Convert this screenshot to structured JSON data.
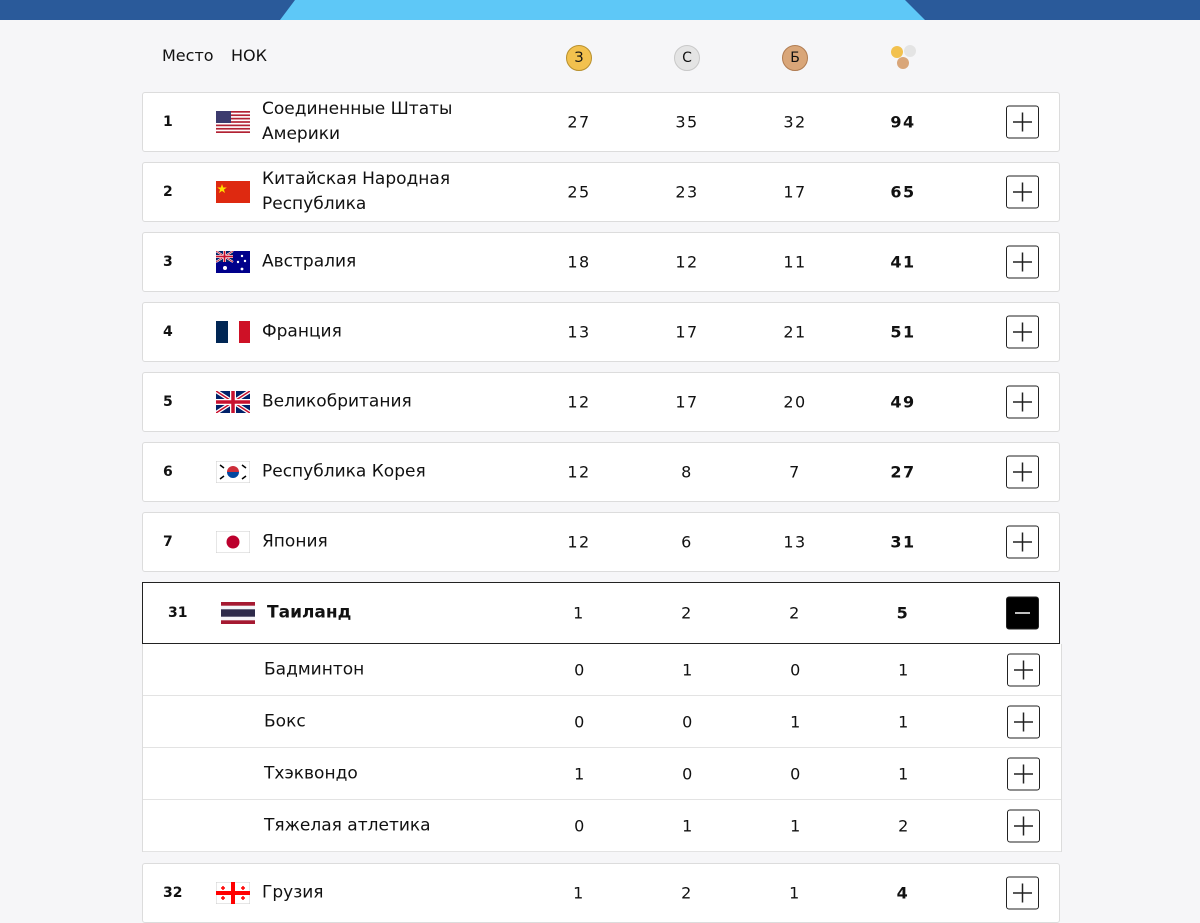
{
  "header": {
    "rank": "Место",
    "noc": "НОК",
    "gold": "З",
    "silver": "С",
    "bronze": "Б"
  },
  "rows": [
    {
      "rank": 1,
      "name": "Соединенные Штаты Америки",
      "gold": 27,
      "silver": 35,
      "bronze": 32,
      "total": 94
    },
    {
      "rank": 2,
      "name": "Китайская Народная Республика",
      "gold": 25,
      "silver": 23,
      "bronze": 17,
      "total": 65
    },
    {
      "rank": 3,
      "name": "Австралия",
      "gold": 18,
      "silver": 12,
      "bronze": 11,
      "total": 41
    },
    {
      "rank": 4,
      "name": "Франция",
      "gold": 13,
      "silver": 17,
      "bronze": 21,
      "total": 51
    },
    {
      "rank": 5,
      "name": "Великобритания",
      "gold": 12,
      "silver": 17,
      "bronze": 20,
      "total": 49
    },
    {
      "rank": 6,
      "name": "Республика Корея",
      "gold": 12,
      "silver": 8,
      "bronze": 7,
      "total": 27
    },
    {
      "rank": 7,
      "name": "Япония",
      "gold": 12,
      "silver": 6,
      "bronze": 13,
      "total": 31
    },
    {
      "rank": 31,
      "name": "Таиланд",
      "gold": 1,
      "silver": 2,
      "bronze": 2,
      "total": 5,
      "sports": [
        {
          "name": "Бадминтон",
          "gold": 0,
          "silver": 1,
          "bronze": 0,
          "total": 1
        },
        {
          "name": "Бокс",
          "gold": 0,
          "silver": 0,
          "bronze": 1,
          "total": 1
        },
        {
          "name": "Тхэквондо",
          "gold": 1,
          "silver": 0,
          "bronze": 0,
          "total": 1
        },
        {
          "name": "Тяжелая атлетика",
          "gold": 0,
          "silver": 1,
          "bronze": 1,
          "total": 2
        }
      ]
    },
    {
      "rank": 32,
      "name": "Грузия",
      "gold": 1,
      "silver": 2,
      "bronze": 1,
      "total": 4
    }
  ]
}
